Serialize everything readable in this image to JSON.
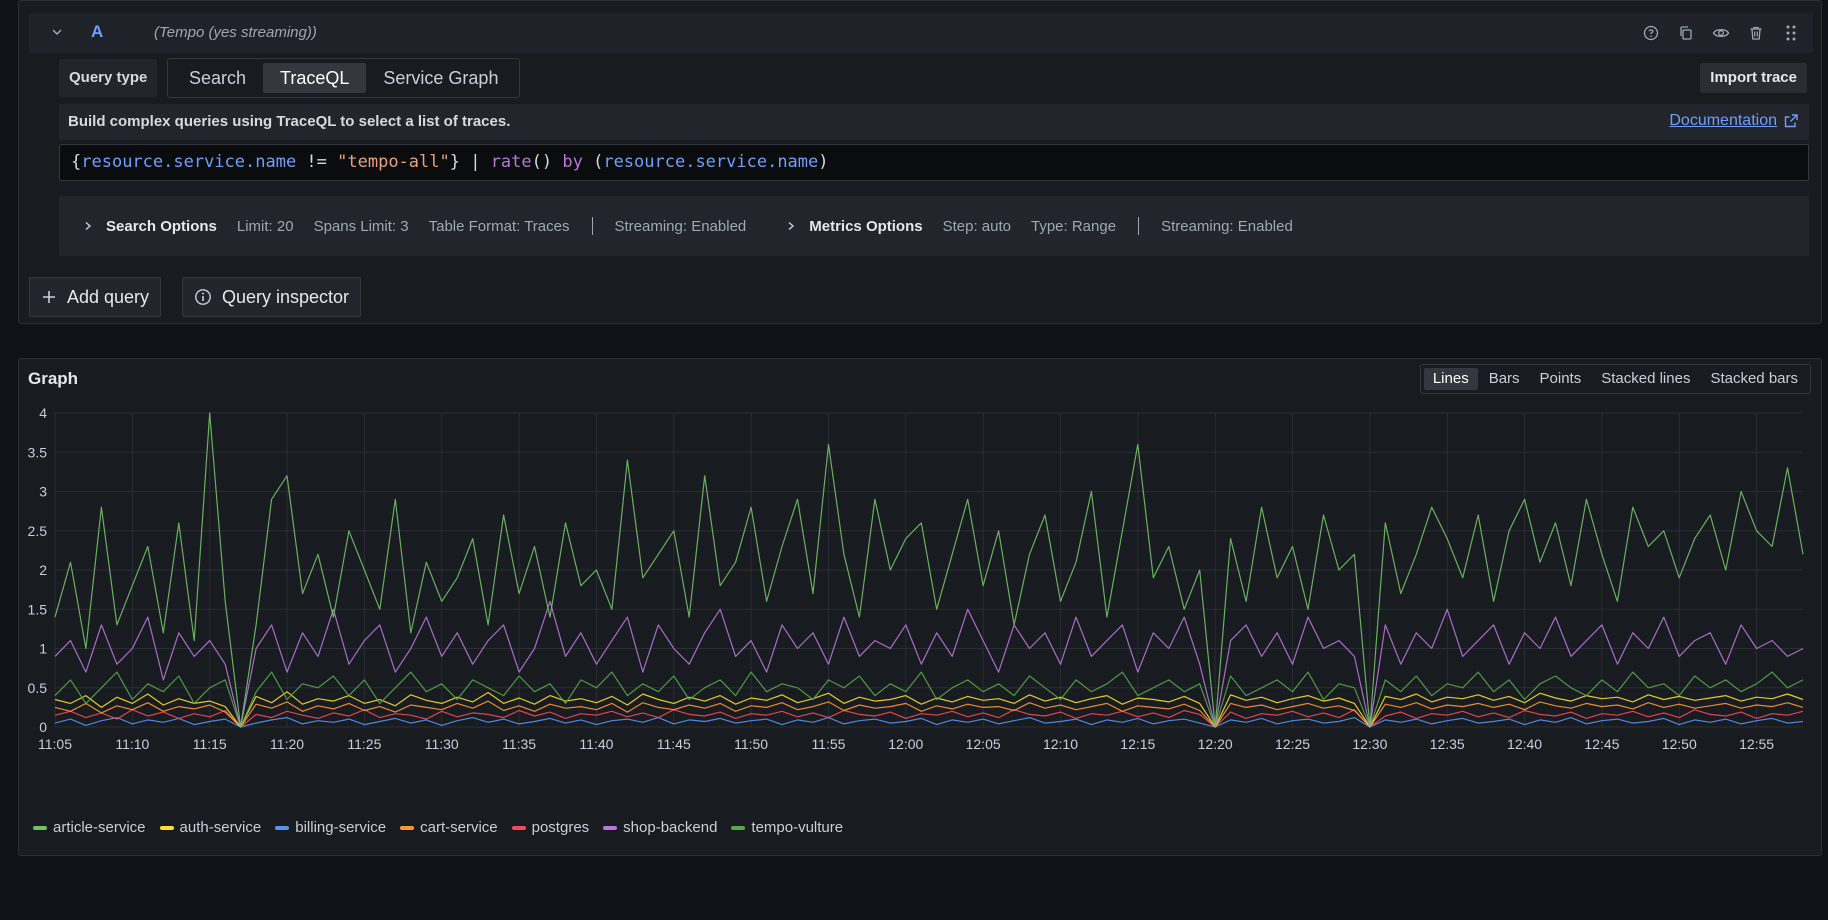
{
  "query": {
    "ref_id": "A",
    "datasource": "(Tempo (yes streaming))",
    "header_icons": [
      "help-icon",
      "copy-icon",
      "eye-icon",
      "trash-icon",
      "drag-handle-icon"
    ],
    "query_type_label": "Query type",
    "query_types": [
      "Search",
      "TraceQL",
      "Service Graph"
    ],
    "active_query_type": "TraceQL",
    "import_trace_label": "Import trace",
    "info_text": "Build complex queries using TraceQL to select a list of traces.",
    "documentation_label": "Documentation",
    "traceql": "{resource.service.name != \"tempo-all\"} | rate() by (resource.service.name)",
    "search_options": {
      "title": "Search Options",
      "limit": "Limit: 20",
      "spans_limit": "Spans Limit: 3",
      "table_format": "Table Format: Traces",
      "streaming": "Streaming: Enabled"
    },
    "metrics_options": {
      "title": "Metrics Options",
      "step": "Step: auto",
      "type": "Type: Range",
      "streaming": "Streaming: Enabled"
    },
    "add_query_label": "Add query",
    "query_inspector_label": "Query inspector"
  },
  "graph": {
    "title": "Graph",
    "viz_options": [
      "Lines",
      "Bars",
      "Points",
      "Stacked lines",
      "Stacked bars"
    ],
    "active_viz": "Lines"
  },
  "chart_data": {
    "type": "line",
    "ylim": [
      0,
      4
    ],
    "yticks": [
      "0",
      "0.5",
      "1",
      "1.5",
      "2",
      "2.5",
      "3",
      "3.5",
      "4"
    ],
    "xtick_labels": [
      "11:05",
      "11:10",
      "11:15",
      "11:20",
      "11:25",
      "11:30",
      "11:35",
      "11:40",
      "11:45",
      "11:50",
      "11:55",
      "12:00",
      "12:05",
      "12:10",
      "12:15",
      "12:20",
      "12:25",
      "12:30",
      "12:35",
      "12:40",
      "12:45",
      "12:50",
      "12:55"
    ],
    "grid": true,
    "legend_position": "bottom-left",
    "x": [
      "11:05",
      "11:06",
      "11:07",
      "11:08",
      "11:09",
      "11:10",
      "11:11",
      "11:12",
      "11:13",
      "11:14",
      "11:15",
      "11:16",
      "11:17",
      "11:18",
      "11:19",
      "11:20",
      "11:21",
      "11:22",
      "11:23",
      "11:24",
      "11:25",
      "11:26",
      "11:27",
      "11:28",
      "11:29",
      "11:30",
      "11:31",
      "11:32",
      "11:33",
      "11:34",
      "11:35",
      "11:36",
      "11:37",
      "11:38",
      "11:39",
      "11:40",
      "11:41",
      "11:42",
      "11:43",
      "11:44",
      "11:45",
      "11:46",
      "11:47",
      "11:48",
      "11:49",
      "11:50",
      "11:51",
      "11:52",
      "11:53",
      "11:54",
      "11:55",
      "11:56",
      "11:57",
      "11:58",
      "11:59",
      "12:00",
      "12:01",
      "12:02",
      "12:03",
      "12:04",
      "12:05",
      "12:06",
      "12:07",
      "12:08",
      "12:09",
      "12:10",
      "12:11",
      "12:12",
      "12:13",
      "12:14",
      "12:15",
      "12:16",
      "12:17",
      "12:18",
      "12:19",
      "12:20",
      "12:21",
      "12:22",
      "12:23",
      "12:24",
      "12:25",
      "12:26",
      "12:27",
      "12:28",
      "12:29",
      "12:30",
      "12:31",
      "12:32",
      "12:33",
      "12:34",
      "12:35",
      "12:36",
      "12:37",
      "12:38",
      "12:39",
      "12:40",
      "12:41",
      "12:42",
      "12:43",
      "12:44",
      "12:45",
      "12:46",
      "12:47",
      "12:48",
      "12:49",
      "12:50",
      "12:51",
      "12:52",
      "12:53",
      "12:54",
      "12:55",
      "12:56",
      "12:57",
      "12:58"
    ],
    "series": [
      {
        "name": "article-service",
        "color": "#73bf69",
        "values": [
          1.4,
          2.1,
          1.0,
          2.8,
          1.3,
          1.8,
          2.3,
          1.2,
          2.6,
          1.1,
          4.0,
          1.6,
          0.0,
          1.3,
          2.9,
          3.2,
          1.7,
          2.2,
          1.4,
          2.5,
          2.0,
          1.5,
          2.9,
          1.2,
          2.1,
          1.6,
          1.9,
          2.4,
          1.3,
          2.7,
          1.7,
          2.3,
          1.4,
          2.6,
          1.8,
          2.0,
          1.5,
          3.4,
          1.9,
          2.2,
          2.5,
          1.4,
          3.2,
          1.8,
          2.1,
          2.8,
          1.6,
          2.3,
          2.9,
          1.7,
          3.6,
          2.2,
          1.4,
          2.9,
          2.0,
          2.4,
          2.6,
          1.5,
          2.2,
          2.9,
          1.8,
          2.5,
          1.3,
          2.2,
          2.7,
          1.6,
          2.1,
          3.0,
          1.4,
          2.5,
          3.6,
          1.9,
          2.3,
          1.5,
          2.0,
          0.0,
          2.4,
          1.6,
          2.8,
          1.9,
          2.3,
          1.5,
          2.7,
          2.0,
          2.2,
          0.0,
          2.6,
          1.7,
          2.2,
          2.8,
          2.4,
          1.9,
          2.7,
          1.6,
          2.5,
          2.9,
          2.1,
          2.6,
          1.8,
          2.9,
          2.2,
          1.6,
          2.8,
          2.3,
          2.5,
          1.9,
          2.4,
          2.7,
          2.0,
          3.0,
          2.5,
          2.3,
          3.3,
          2.2
        ]
      },
      {
        "name": "auth-service",
        "color": "#fade2a",
        "values": [
          0.35,
          0.3,
          0.4,
          0.25,
          0.38,
          0.3,
          0.42,
          0.28,
          0.36,
          0.3,
          0.33,
          0.26,
          0.0,
          0.39,
          0.31,
          0.45,
          0.29,
          0.36,
          0.33,
          0.4,
          0.3,
          0.35,
          0.27,
          0.41,
          0.34,
          0.3,
          0.38,
          0.32,
          0.44,
          0.3,
          0.37,
          0.29,
          0.4,
          0.33,
          0.36,
          0.31,
          0.39,
          0.28,
          0.42,
          0.35,
          0.3,
          0.38,
          0.33,
          0.4,
          0.29,
          0.37,
          0.34,
          0.41,
          0.31,
          0.36,
          0.43,
          0.3,
          0.38,
          0.33,
          0.35,
          0.4,
          0.29,
          0.37,
          0.32,
          0.39,
          0.34,
          0.36,
          0.3,
          0.41,
          0.33,
          0.38,
          0.31,
          0.36,
          0.4,
          0.29,
          0.37,
          0.35,
          0.32,
          0.39,
          0.3,
          0.0,
          0.41,
          0.34,
          0.38,
          0.31,
          0.36,
          0.4,
          0.33,
          0.37,
          0.3,
          0.0,
          0.39,
          0.35,
          0.42,
          0.32,
          0.38,
          0.36,
          0.41,
          0.34,
          0.39,
          0.31,
          0.43,
          0.37,
          0.33,
          0.4,
          0.36,
          0.38,
          0.32,
          0.41,
          0.35,
          0.39,
          0.34,
          0.37,
          0.4,
          0.33,
          0.38,
          0.36,
          0.42,
          0.35
        ]
      },
      {
        "name": "billing-service",
        "color": "#5794f2",
        "values": [
          0.05,
          0.1,
          0.02,
          0.08,
          0.12,
          0.04,
          0.09,
          0.06,
          0.11,
          0.03,
          0.07,
          0.1,
          0.0,
          0.05,
          0.09,
          0.12,
          0.04,
          0.08,
          0.06,
          0.1,
          0.03,
          0.07,
          0.11,
          0.05,
          0.09,
          0.02,
          0.08,
          0.12,
          0.06,
          0.1,
          0.04,
          0.07,
          0.11,
          0.05,
          0.09,
          0.03,
          0.08,
          0.1,
          0.06,
          0.12,
          0.04,
          0.09,
          0.07,
          0.11,
          0.05,
          0.08,
          0.1,
          0.03,
          0.09,
          0.06,
          0.12,
          0.04,
          0.08,
          0.1,
          0.05,
          0.07,
          0.11,
          0.03,
          0.09,
          0.06,
          0.1,
          0.04,
          0.08,
          0.12,
          0.05,
          0.07,
          0.1,
          0.03,
          0.09,
          0.06,
          0.11,
          0.04,
          0.08,
          0.1,
          0.05,
          0.0,
          0.09,
          0.06,
          0.11,
          0.04,
          0.08,
          0.1,
          0.05,
          0.07,
          0.12,
          0.0,
          0.09,
          0.06,
          0.1,
          0.04,
          0.08,
          0.11,
          0.05,
          0.07,
          0.1,
          0.03,
          0.09,
          0.06,
          0.12,
          0.04,
          0.08,
          0.1,
          0.05,
          0.07,
          0.11,
          0.03,
          0.09,
          0.06,
          0.1,
          0.04,
          0.08,
          0.11,
          0.05,
          0.07
        ]
      },
      {
        "name": "cart-service",
        "color": "#ff9830",
        "values": [
          0.25,
          0.2,
          0.3,
          0.18,
          0.27,
          0.22,
          0.31,
          0.2,
          0.26,
          0.23,
          0.28,
          0.19,
          0.0,
          0.29,
          0.24,
          0.32,
          0.2,
          0.27,
          0.23,
          0.3,
          0.21,
          0.26,
          0.19,
          0.28,
          0.25,
          0.22,
          0.3,
          0.24,
          0.33,
          0.21,
          0.27,
          0.2,
          0.29,
          0.24,
          0.26,
          0.22,
          0.3,
          0.19,
          0.31,
          0.25,
          0.22,
          0.28,
          0.24,
          0.3,
          0.2,
          0.27,
          0.25,
          0.31,
          0.22,
          0.26,
          0.32,
          0.21,
          0.28,
          0.24,
          0.26,
          0.3,
          0.2,
          0.27,
          0.23,
          0.29,
          0.25,
          0.26,
          0.21,
          0.31,
          0.24,
          0.28,
          0.22,
          0.26,
          0.3,
          0.2,
          0.27,
          0.25,
          0.23,
          0.29,
          0.21,
          0.0,
          0.3,
          0.25,
          0.28,
          0.22,
          0.26,
          0.3,
          0.24,
          0.27,
          0.21,
          0.0,
          0.29,
          0.25,
          0.31,
          0.23,
          0.28,
          0.26,
          0.3,
          0.25,
          0.29,
          0.22,
          0.32,
          0.27,
          0.24,
          0.3,
          0.26,
          0.28,
          0.23,
          0.31,
          0.25,
          0.29,
          0.24,
          0.27,
          0.3,
          0.24,
          0.28,
          0.26,
          0.31,
          0.25
        ]
      },
      {
        "name": "postgres",
        "color": "#f2495c",
        "values": [
          0.15,
          0.2,
          0.12,
          0.18,
          0.1,
          0.22,
          0.14,
          0.19,
          0.11,
          0.17,
          0.13,
          0.21,
          0.0,
          0.16,
          0.12,
          0.2,
          0.15,
          0.11,
          0.18,
          0.14,
          0.22,
          0.12,
          0.17,
          0.15,
          0.1,
          0.2,
          0.13,
          0.18,
          0.16,
          0.12,
          0.21,
          0.14,
          0.19,
          0.11,
          0.17,
          0.15,
          0.2,
          0.13,
          0.18,
          0.12,
          0.22,
          0.16,
          0.14,
          0.19,
          0.11,
          0.17,
          0.15,
          0.2,
          0.13,
          0.18,
          0.12,
          0.21,
          0.16,
          0.14,
          0.19,
          0.11,
          0.17,
          0.15,
          0.2,
          0.13,
          0.18,
          0.12,
          0.22,
          0.16,
          0.14,
          0.19,
          0.11,
          0.17,
          0.15,
          0.2,
          0.13,
          0.18,
          0.12,
          0.21,
          0.16,
          0.0,
          0.19,
          0.11,
          0.17,
          0.15,
          0.2,
          0.13,
          0.18,
          0.12,
          0.22,
          0.0,
          0.14,
          0.19,
          0.11,
          0.17,
          0.15,
          0.2,
          0.13,
          0.18,
          0.12,
          0.21,
          0.16,
          0.14,
          0.19,
          0.11,
          0.17,
          0.15,
          0.2,
          0.13,
          0.18,
          0.12,
          0.22,
          0.16,
          0.14,
          0.19,
          0.11,
          0.17,
          0.15,
          0.2
        ]
      },
      {
        "name": "shop-backend",
        "color": "#b877d9",
        "values": [
          0.9,
          1.1,
          0.7,
          1.3,
          0.8,
          1.0,
          1.4,
          0.6,
          1.2,
          0.9,
          1.1,
          0.8,
          0.0,
          1.0,
          1.3,
          0.7,
          1.2,
          0.9,
          1.5,
          0.8,
          1.1,
          1.3,
          0.7,
          1.0,
          1.4,
          0.9,
          1.2,
          0.8,
          1.1,
          1.3,
          0.7,
          1.0,
          1.6,
          0.9,
          1.2,
          0.8,
          1.1,
          1.4,
          0.7,
          1.3,
          1.0,
          0.8,
          1.2,
          1.5,
          0.9,
          1.1,
          0.7,
          1.3,
          1.0,
          1.2,
          0.8,
          1.4,
          0.9,
          1.1,
          1.0,
          1.3,
          0.8,
          1.2,
          0.9,
          1.5,
          1.1,
          0.7,
          1.3,
          1.0,
          1.2,
          0.8,
          1.4,
          0.9,
          1.1,
          1.3,
          0.7,
          1.2,
          1.0,
          1.4,
          0.8,
          0.0,
          1.1,
          1.3,
          0.9,
          1.2,
          0.8,
          1.4,
          1.0,
          1.1,
          0.9,
          0.0,
          1.3,
          0.8,
          1.2,
          1.0,
          1.5,
          0.9,
          1.1,
          1.3,
          0.8,
          1.2,
          1.0,
          1.4,
          0.9,
          1.1,
          1.3,
          0.8,
          1.2,
          1.0,
          1.4,
          0.9,
          1.1,
          1.2,
          0.8,
          1.3,
          1.0,
          1.1,
          0.9,
          1.0
        ]
      },
      {
        "name": "tempo-vulture",
        "color": "#56a64b",
        "values": [
          0.4,
          0.6,
          0.3,
          0.5,
          0.7,
          0.35,
          0.55,
          0.45,
          0.65,
          0.3,
          0.5,
          0.6,
          0.0,
          0.45,
          0.7,
          0.35,
          0.55,
          0.5,
          0.65,
          0.4,
          0.6,
          0.3,
          0.5,
          0.7,
          0.45,
          0.55,
          0.35,
          0.6,
          0.5,
          0.4,
          0.65,
          0.45,
          0.55,
          0.3,
          0.6,
          0.5,
          0.7,
          0.4,
          0.55,
          0.45,
          0.65,
          0.35,
          0.5,
          0.6,
          0.4,
          0.7,
          0.45,
          0.55,
          0.5,
          0.35,
          0.6,
          0.5,
          0.65,
          0.4,
          0.55,
          0.45,
          0.7,
          0.35,
          0.5,
          0.6,
          0.45,
          0.55,
          0.4,
          0.65,
          0.5,
          0.35,
          0.6,
          0.45,
          0.55,
          0.7,
          0.4,
          0.5,
          0.6,
          0.45,
          0.55,
          0.0,
          0.65,
          0.4,
          0.5,
          0.6,
          0.45,
          0.7,
          0.35,
          0.55,
          0.5,
          0.0,
          0.6,
          0.45,
          0.65,
          0.4,
          0.55,
          0.5,
          0.7,
          0.45,
          0.6,
          0.35,
          0.55,
          0.65,
          0.5,
          0.4,
          0.6,
          0.45,
          0.7,
          0.5,
          0.55,
          0.4,
          0.65,
          0.5,
          0.6,
          0.45,
          0.55,
          0.7,
          0.5,
          0.6
        ]
      }
    ]
  }
}
